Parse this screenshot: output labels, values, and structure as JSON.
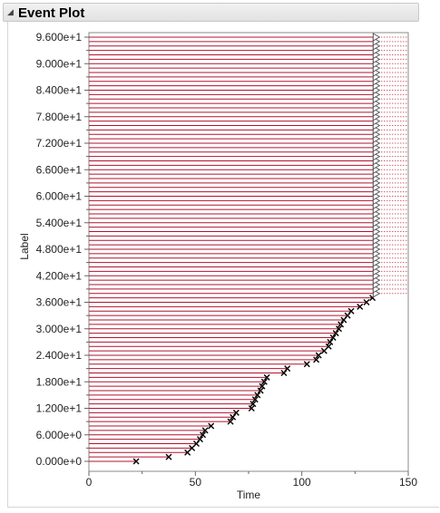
{
  "panel": {
    "toggle_icon": "collapse-triangle-icon",
    "title": "Event Plot"
  },
  "chart_data": {
    "type": "event",
    "title": "Event Plot",
    "xlabel": "Time",
    "ylabel": "Label",
    "xlim": [
      0,
      150
    ],
    "ylim": [
      0,
      96
    ],
    "x_ticks": [
      "0",
      "50",
      "100",
      "150"
    ],
    "y_ticks": [
      "0.000e+0",
      "6.000e+0",
      "1.200e+1",
      "1.800e+1",
      "2.400e+1",
      "3.000e+1",
      "3.600e+1",
      "4.200e+1",
      "4.800e+1",
      "5.400e+1",
      "6.000e+1",
      "6.600e+1",
      "7.200e+1",
      "7.800e+1",
      "8.400e+1",
      "9.000e+1",
      "9.600e+1"
    ],
    "y_tick_values": [
      0,
      6,
      12,
      18,
      24,
      30,
      36,
      42,
      48,
      54,
      60,
      66,
      72,
      78,
      84,
      90,
      96
    ],
    "censor_time": 134.8,
    "censor_extension_end": 150,
    "event_times": [
      22.2,
      37.5,
      46.3,
      48.4,
      50.5,
      52.2,
      53.5,
      54.6,
      57.4,
      66.5,
      67.6,
      69.2,
      76.4,
      77.1,
      78.1,
      79.2,
      80.6,
      81.4,
      82.4,
      83.6,
      91.6,
      93.2,
      102.4,
      106.8,
      107.9,
      110.5,
      112.6,
      113.3,
      114.7,
      116.0,
      117.4,
      118.3,
      119.7,
      121.5,
      123.2,
      127.3,
      130.4,
      133.2
    ],
    "event_color": "#b3112e",
    "censor_color": "#b3112e",
    "marker_color": "#000000"
  }
}
